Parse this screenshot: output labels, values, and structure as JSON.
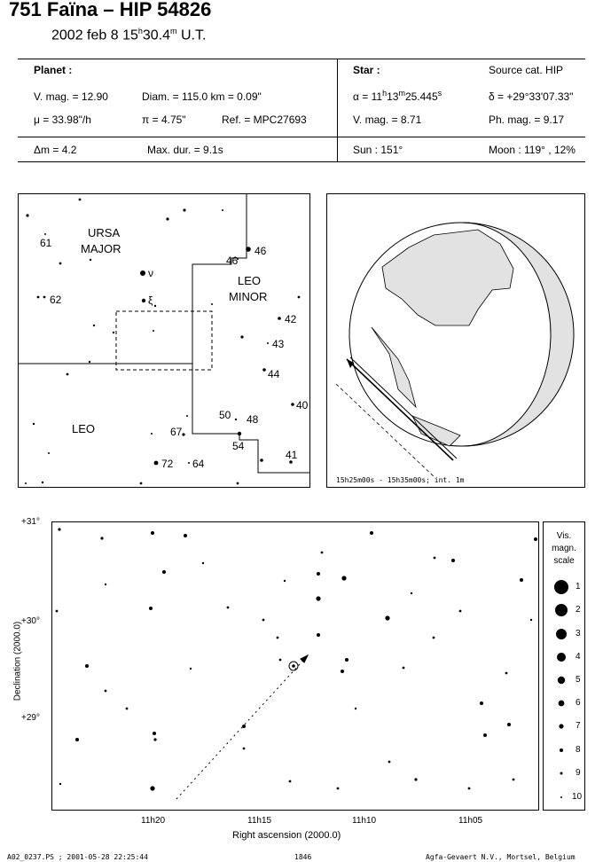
{
  "header": {
    "title": "751 Faïna  –  HIP 54826",
    "date_prefix": "2002 feb  8  15",
    "time_h": "h",
    "time_m": "30.4",
    "time_msup": "m",
    "time_suffix": " U.T."
  },
  "planet": {
    "heading": "Planet :",
    "vmag": "V. mag. = 12.90",
    "diam": "Diam. = 115.0 km = 0.09\"",
    "mu": "μ =  33.98\"/h",
    "pi": "π =  4.75\"",
    "ref": "Ref. = MPC27693",
    "dm": "Δm = 4.2",
    "maxdur": "Max. dur. = 9.1s"
  },
  "star": {
    "heading": "Star :",
    "source": "Source cat.  HIP",
    "alpha_a": "α = 11",
    "alpha_h": "h",
    "alpha_b": "13",
    "alpha_m": "m",
    "alpha_c": "25.445",
    "alpha_s": "s",
    "delta": "δ = +29°33'07.33\"",
    "vmag": "V. mag. =  8.71",
    "phmag": "Ph. mag. =  9.17",
    "sun": "Sun : 151°",
    "moon": "Moon : 119° , 12%"
  },
  "finder": {
    "labels": {
      "ursa": "URSA",
      "major": "MAJOR",
      "leo_minor_1": "LEO",
      "leo_minor_2": "MINOR",
      "leo": "LEO",
      "n61": "61",
      "n62": "62",
      "nu": "ν",
      "xi": "ξ",
      "n46a": "46",
      "n46b": "46",
      "n42": "42",
      "n43": "43",
      "n44": "44",
      "n40": "40",
      "n50": "50",
      "n48": "48",
      "n67": "67",
      "n54": "54",
      "n41": "41",
      "n72": "72",
      "n64": "64"
    }
  },
  "globe": {
    "caption": "15h25m00s - 15h35m00s; int.  1m"
  },
  "chart": {
    "dec_label": "Declination (2000.0)",
    "ra_label": "Right ascension (2000.0)",
    "y_ticks": [
      "+31°",
      "+30°",
      "+29°"
    ],
    "x_ticks": [
      "11h20",
      "11h15",
      "11h10",
      "11h05"
    ]
  },
  "scale": {
    "heading_1": "Vis.",
    "heading_2": "magn.",
    "heading_3": "scale",
    "mags": [
      "1",
      "2",
      "3",
      "4",
      "5",
      "6",
      "7",
      "8",
      "9",
      "10"
    ]
  },
  "footer": {
    "file": "A02_0237.PS ; 2001-05-28 22:25:44",
    "num": "1846",
    "org": "Agfa-Gevaert N.V., Mortsel, Belgium"
  }
}
